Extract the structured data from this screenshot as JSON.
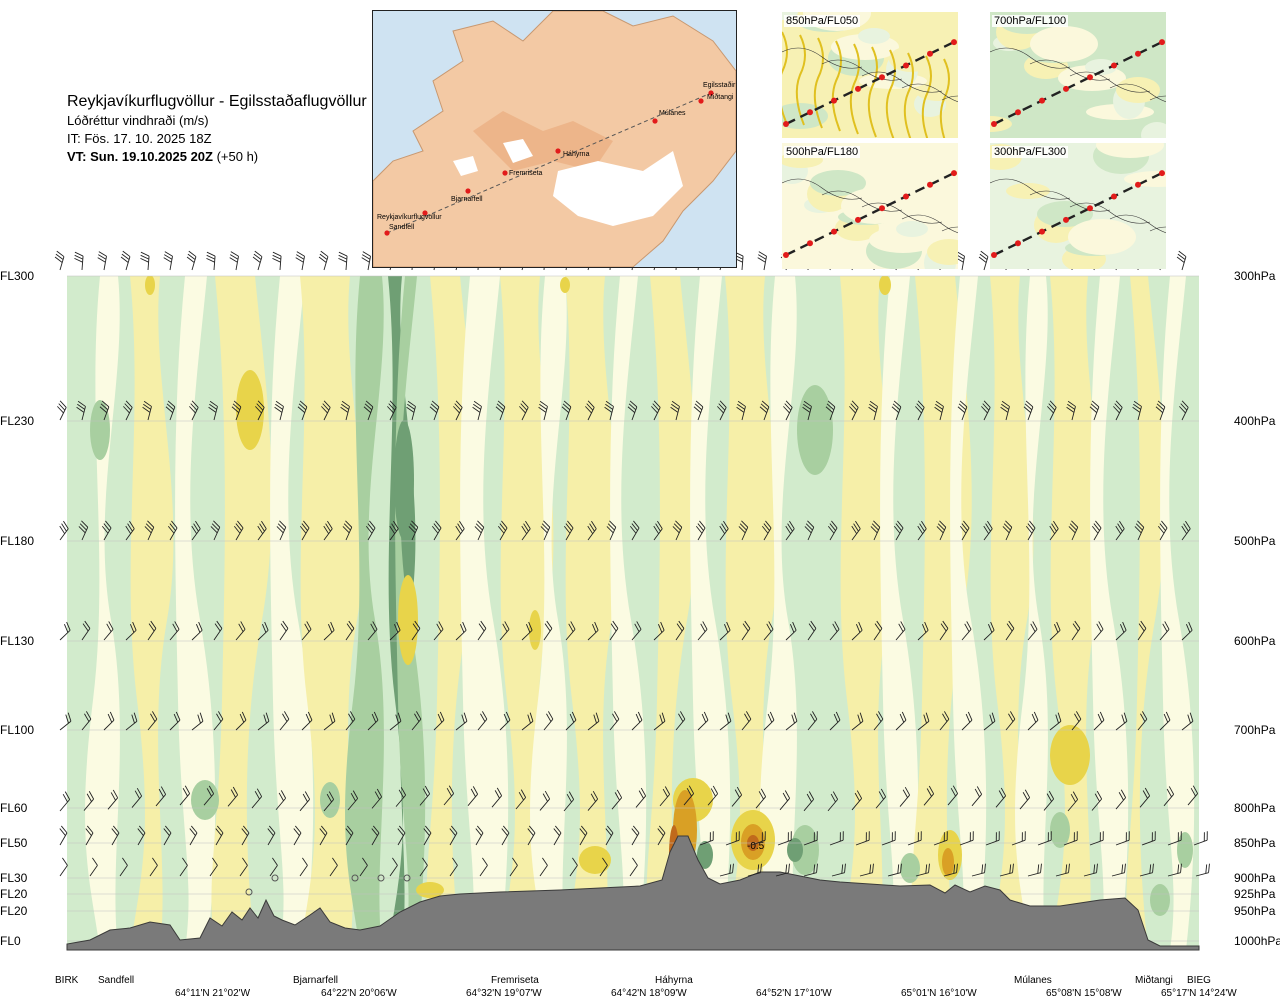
{
  "title": {
    "route": "Reykjavíkurflugvöllur - Egilsstaðaflugvöllur",
    "variable": "Lóðréttur vindhraði (m/s)",
    "issue_time": "IT: Fös. 17. 10. 2025 18Z",
    "valid_time": "VT: Sun. 19.10.2025 20Z",
    "valid_offset": " (+50 h)"
  },
  "map": {
    "places": [
      "Reykjavíkurflugvöllur",
      "Sandfell",
      "Bjarnarfell",
      "Fremriseta",
      "Háhyrna",
      "Múlanes",
      "Miðtangi",
      "Egilsstaðir"
    ]
  },
  "thumbnails": [
    {
      "label": "850hPa/FL050"
    },
    {
      "label": "700hPa/FL100"
    },
    {
      "label": "500hPa/FL180"
    },
    {
      "label": "300hPa/FL300"
    }
  ],
  "levels_left": [
    "FL300",
    "FL230",
    "FL180",
    "FL130",
    "FL100",
    "FL60",
    "FL50",
    "FL30",
    "FL20",
    "FL20",
    "FL0"
  ],
  "levels_right": [
    "300hPa",
    "400hPa",
    "500hPa",
    "600hPa",
    "700hPa",
    "800hPa",
    "850hPa",
    "900hPa",
    "925hPa",
    "950hPa",
    "1000hPa"
  ],
  "waypoints": [
    "BIRK",
    "Sandfell",
    "Bjarnarfell",
    "Fremriseta",
    "Háhyrna",
    "Múlanes",
    "Miðtangi",
    "BIEG"
  ],
  "coordinates": [
    "64°11'N 21°02'W",
    "64°22'N 20°06'W",
    "64°32'N 19°07'W",
    "64°42'N 18°09'W",
    "64°52'N 17°10'W",
    "65°01'N 16°10'W",
    "65°08'N 15°08'W",
    "65°17'N 14°24'W"
  ],
  "chart_data": {
    "type": "heatmap",
    "title": "Lóðréttur vindhraði (m/s)",
    "y_levels_hPa": [
      300,
      400,
      500,
      600,
      700,
      800,
      850,
      900,
      925,
      950,
      1000
    ],
    "contour_label": "-0.5",
    "colors": {
      "strong_down": "#6f9f74",
      "down": "#a8cfa0",
      "weak_down": "#d2ebcc",
      "neutral": "#fbfbe2",
      "weak_up": "#f6efa8",
      "up": "#e8d44a",
      "strong_up": "#d9a025",
      "very_strong_up": "#c06a1c",
      "terrain": "#7a7a7a"
    }
  }
}
